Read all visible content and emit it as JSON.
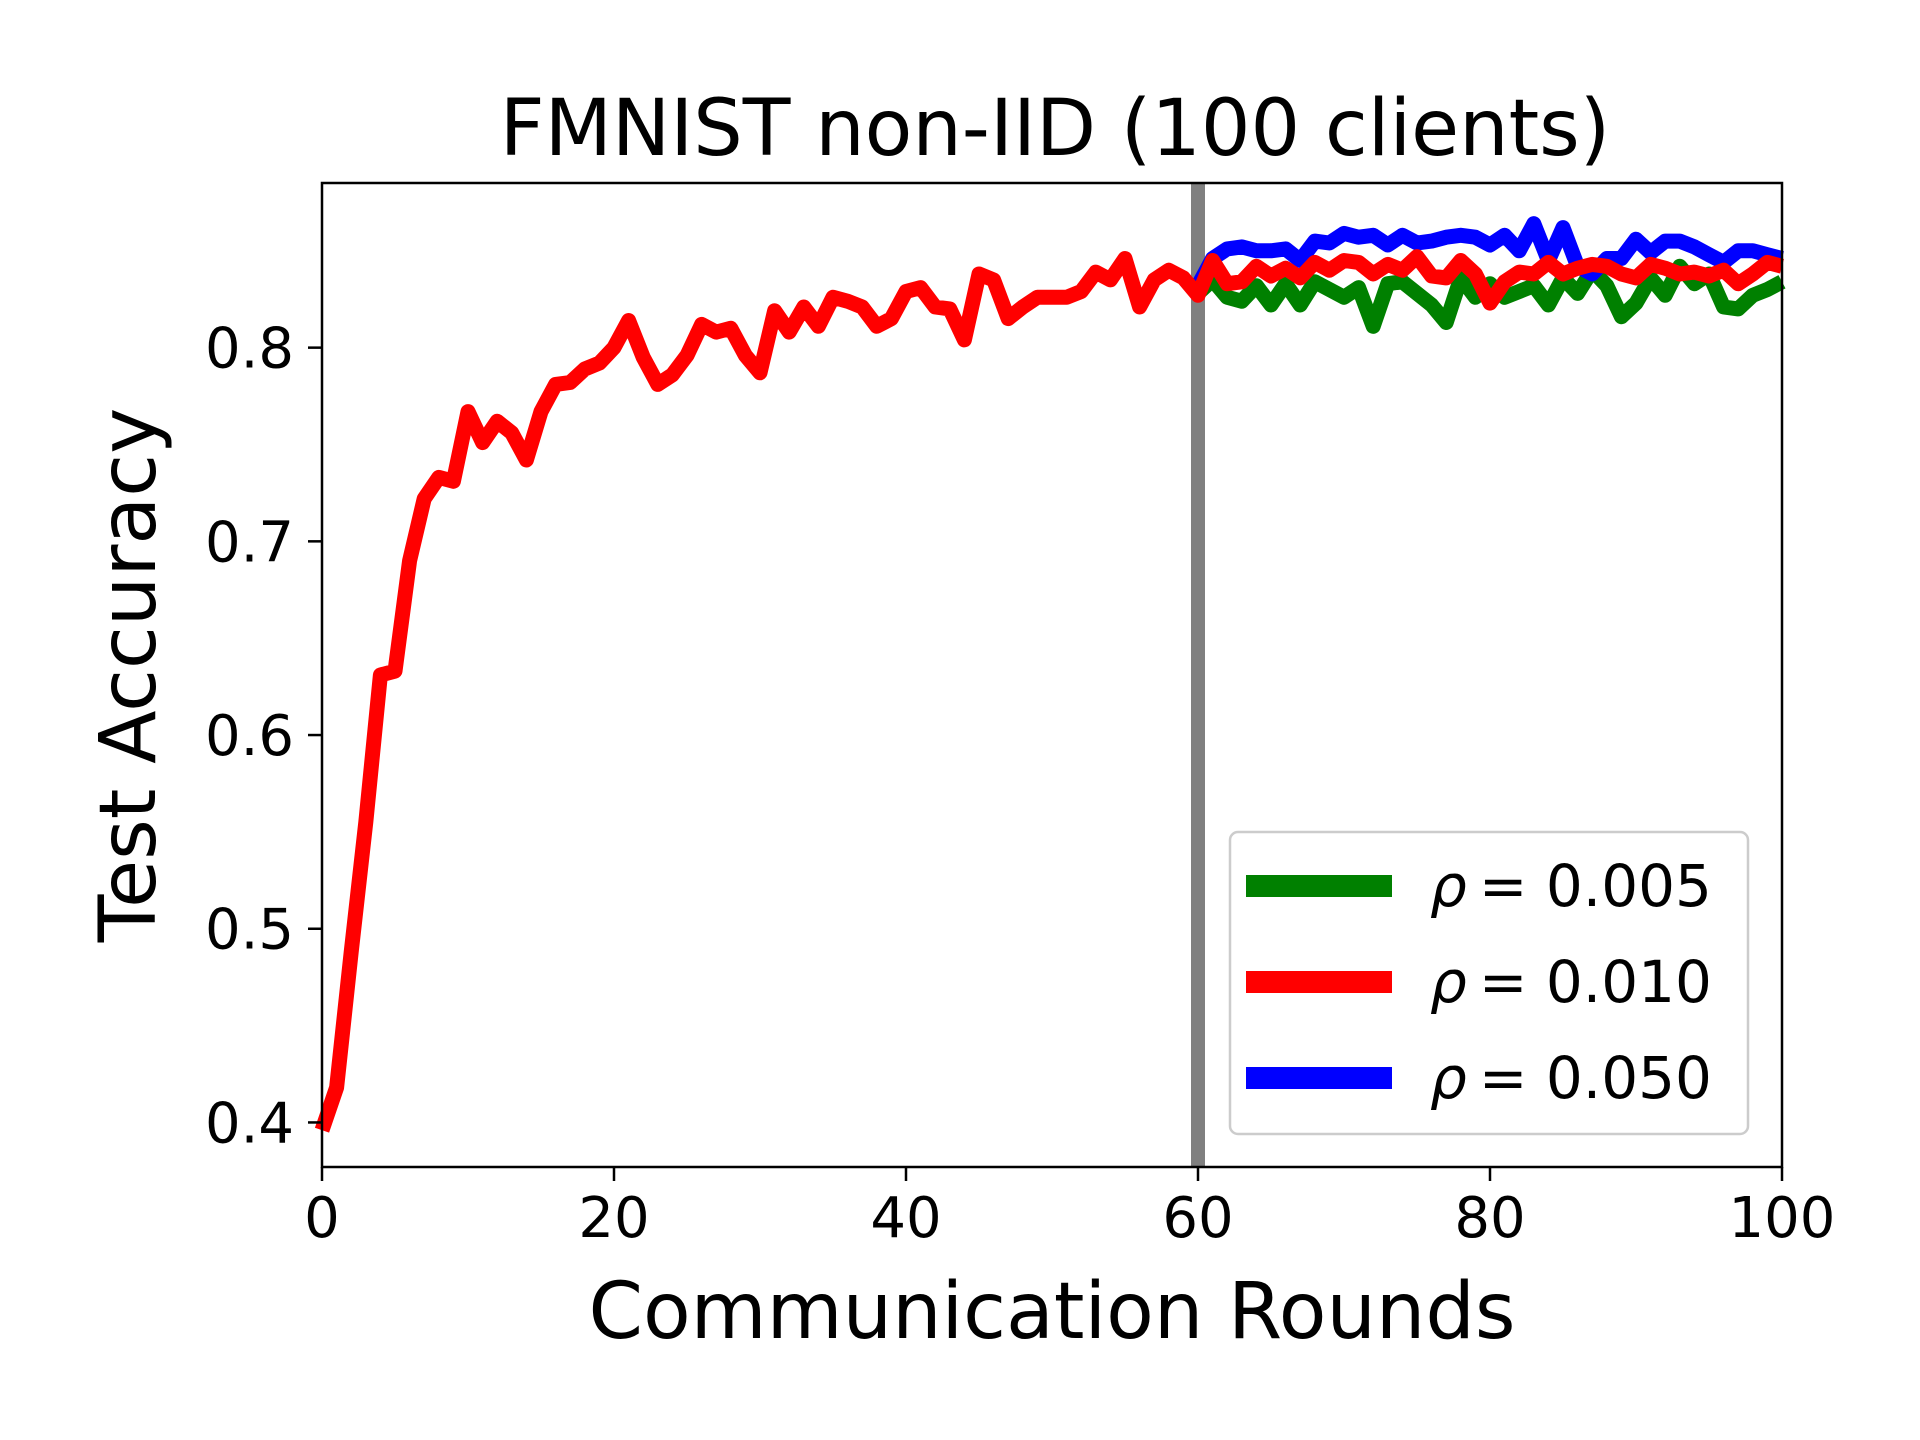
{
  "chart_data": {
    "type": "line",
    "title": "FMNIST non-IID (100 clients)",
    "xlabel": "Communication Rounds",
    "ylabel": "Test Accuracy",
    "xlim": [
      0,
      100
    ],
    "ylim": [
      0.377,
      0.885
    ],
    "xticks": [
      0,
      20,
      40,
      60,
      80,
      100
    ],
    "xtick_labels": [
      "0",
      "20",
      "40",
      "60",
      "80",
      "100"
    ],
    "yticks": [
      0.4,
      0.5,
      0.6,
      0.7,
      0.8
    ],
    "ytick_labels": [
      "0.4",
      "0.5",
      "0.6",
      "0.7",
      "0.8"
    ],
    "grid": false,
    "legend_position": "bottom-right",
    "vline": {
      "x": 60,
      "color": "#808080"
    },
    "series": [
      {
        "name": "ρ = 0.005",
        "legend_var": "ρ",
        "legend_value": "= 0.005",
        "color": "#008000",
        "x": [
          60,
          61,
          62,
          63,
          64,
          65,
          66,
          67,
          68,
          69,
          70,
          71,
          72,
          73,
          74,
          75,
          76,
          77,
          78,
          79,
          80,
          81,
          82,
          83,
          84,
          85,
          86,
          87,
          88,
          89,
          90,
          91,
          92,
          93,
          94,
          95,
          96,
          97,
          98,
          99,
          100
        ],
        "y": [
          0.828,
          0.835,
          0.826,
          0.824,
          0.832,
          0.822,
          0.833,
          0.822,
          0.834,
          0.83,
          0.826,
          0.831,
          0.811,
          0.833,
          0.834,
          0.828,
          0.822,
          0.813,
          0.836,
          0.826,
          0.833,
          0.826,
          0.829,
          0.832,
          0.822,
          0.836,
          0.828,
          0.84,
          0.832,
          0.816,
          0.823,
          0.836,
          0.827,
          0.842,
          0.833,
          0.838,
          0.821,
          0.82,
          0.827,
          0.83,
          0.834
        ]
      },
      {
        "name": "ρ = 0.010",
        "legend_var": "ρ",
        "legend_value": "= 0.010",
        "color": "#ff0000",
        "x": [
          0,
          1,
          2,
          3,
          4,
          5,
          6,
          7,
          8,
          9,
          10,
          11,
          12,
          13,
          14,
          15,
          16,
          17,
          18,
          19,
          20,
          21,
          22,
          23,
          24,
          25,
          26,
          27,
          28,
          29,
          30,
          31,
          32,
          33,
          34,
          35,
          36,
          37,
          38,
          39,
          40,
          41,
          42,
          43,
          44,
          45,
          46,
          47,
          48,
          49,
          50,
          51,
          52,
          53,
          54,
          55,
          56,
          57,
          58,
          59,
          60,
          61,
          62,
          63,
          64,
          65,
          66,
          67,
          68,
          69,
          70,
          71,
          72,
          73,
          74,
          75,
          76,
          77,
          78,
          79,
          80,
          81,
          82,
          83,
          84,
          85,
          86,
          87,
          88,
          89,
          90,
          91,
          92,
          93,
          94,
          95,
          96,
          97,
          98,
          99,
          100
        ],
        "y": [
          0.396,
          0.418,
          0.488,
          0.555,
          0.631,
          0.633,
          0.69,
          0.722,
          0.733,
          0.731,
          0.767,
          0.751,
          0.762,
          0.756,
          0.742,
          0.767,
          0.781,
          0.782,
          0.789,
          0.792,
          0.8,
          0.814,
          0.795,
          0.781,
          0.786,
          0.796,
          0.812,
          0.808,
          0.81,
          0.796,
          0.787,
          0.819,
          0.808,
          0.821,
          0.811,
          0.826,
          0.824,
          0.821,
          0.811,
          0.815,
          0.829,
          0.831,
          0.821,
          0.82,
          0.804,
          0.838,
          0.835,
          0.815,
          0.821,
          0.826,
          0.826,
          0.826,
          0.829,
          0.839,
          0.835,
          0.846,
          0.821,
          0.835,
          0.84,
          0.836,
          0.827,
          0.845,
          0.833,
          0.834,
          0.842,
          0.837,
          0.841,
          0.836,
          0.844,
          0.84,
          0.845,
          0.844,
          0.838,
          0.843,
          0.84,
          0.847,
          0.837,
          0.836,
          0.845,
          0.838,
          0.823,
          0.834,
          0.839,
          0.838,
          0.844,
          0.838,
          0.841,
          0.843,
          0.842,
          0.838,
          0.836,
          0.843,
          0.841,
          0.838,
          0.839,
          0.837,
          0.84,
          0.833,
          0.838,
          0.844,
          0.842
        ]
      },
      {
        "name": "ρ = 0.050",
        "legend_var": "ρ",
        "legend_value": "= 0.050",
        "color": "#0000ff",
        "x": [
          60,
          61,
          62,
          63,
          64,
          65,
          66,
          67,
          68,
          69,
          70,
          71,
          72,
          73,
          74,
          75,
          76,
          77,
          78,
          79,
          80,
          81,
          82,
          83,
          84,
          85,
          86,
          87,
          88,
          89,
          90,
          91,
          92,
          93,
          94,
          95,
          96,
          97,
          98,
          99,
          100
        ],
        "y": [
          0.832,
          0.846,
          0.851,
          0.852,
          0.85,
          0.85,
          0.851,
          0.845,
          0.855,
          0.854,
          0.859,
          0.857,
          0.858,
          0.853,
          0.858,
          0.854,
          0.855,
          0.857,
          0.858,
          0.857,
          0.853,
          0.858,
          0.85,
          0.864,
          0.845,
          0.862,
          0.842,
          0.838,
          0.846,
          0.846,
          0.856,
          0.849,
          0.855,
          0.855,
          0.852,
          0.848,
          0.844,
          0.85,
          0.85,
          0.848,
          0.846
        ]
      }
    ]
  }
}
